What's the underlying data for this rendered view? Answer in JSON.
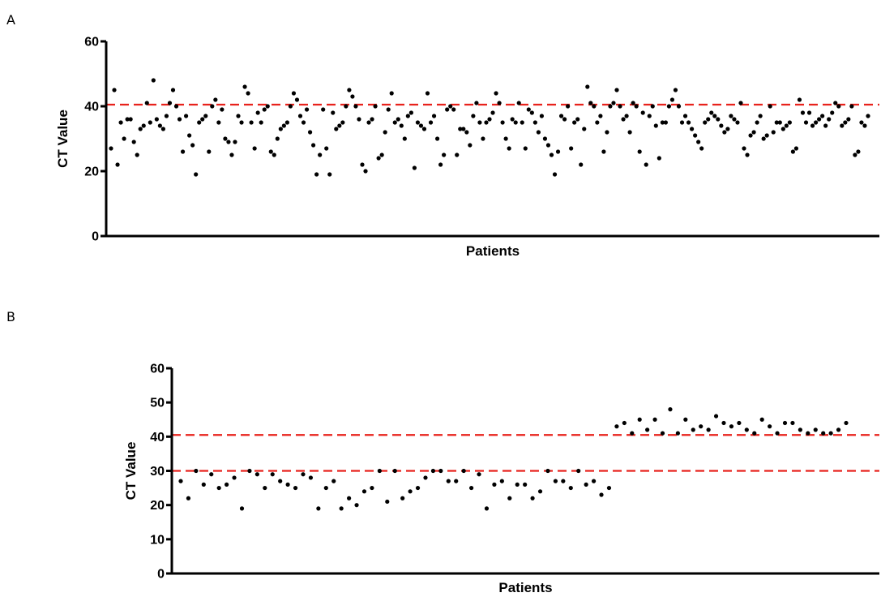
{
  "chart_data": [
    {
      "panel": "A",
      "type": "scatter",
      "xlabel": "Patients",
      "ylabel": "CT Value",
      "ylim": [
        0,
        60
      ],
      "yticks": [
        0,
        20,
        40,
        60
      ],
      "grid": false,
      "point_color": "#000000",
      "threshold_color": "#e8221c",
      "thresholds": [
        40.5
      ],
      "y": [
        27,
        45,
        22,
        35,
        30,
        36,
        36,
        29,
        25,
        33,
        34,
        41,
        35,
        48,
        36,
        34,
        33,
        37,
        41,
        45,
        40,
        36,
        26,
        37,
        31,
        28,
        19,
        35,
        36,
        37,
        26,
        40,
        42,
        35,
        39,
        30,
        29,
        25,
        29,
        37,
        35,
        46,
        44,
        35,
        27,
        38,
        35,
        39,
        40,
        26,
        25,
        30,
        33,
        34,
        35,
        40,
        44,
        42,
        37,
        35,
        39,
        32,
        28,
        19,
        25,
        39,
        27,
        19,
        38,
        33,
        34,
        35,
        40,
        45,
        43,
        40,
        36,
        22,
        20,
        35,
        36,
        40,
        24,
        25,
        32,
        39,
        44,
        35,
        36,
        34,
        30,
        37,
        38,
        21,
        35,
        34,
        33,
        44,
        35,
        37,
        30,
        22,
        25,
        39,
        40,
        39,
        25,
        33,
        33,
        32,
        28,
        37,
        41,
        35,
        30,
        35,
        36,
        38,
        44,
        41,
        35,
        30,
        27,
        36,
        35,
        41,
        35,
        27,
        39,
        38,
        35,
        32,
        37,
        30,
        28,
        25,
        19,
        26,
        37,
        36,
        40,
        27,
        35,
        36,
        22,
        33,
        46,
        41,
        40,
        35,
        37,
        26,
        32,
        40,
        41,
        45,
        40,
        36,
        37,
        32,
        41,
        40,
        26,
        38,
        22,
        37,
        40,
        34,
        24,
        35,
        35,
        40,
        42,
        45,
        40,
        35,
        37,
        35,
        33,
        31,
        29,
        27,
        35,
        36,
        38,
        37,
        36,
        34,
        32,
        33,
        37,
        36,
        35,
        41,
        27,
        25,
        31,
        32,
        35,
        37,
        30,
        31,
        40,
        32,
        35,
        35,
        33,
        34,
        35,
        26,
        27,
        42,
        38,
        35,
        38,
        34,
        35,
        36,
        37,
        34,
        36,
        38,
        41,
        40,
        34,
        35,
        36,
        40,
        25,
        26,
        35,
        34,
        37
      ]
    },
    {
      "panel": "B",
      "type": "scatter",
      "xlabel": "Patients",
      "ylabel": "CT Value",
      "ylim": [
        0,
        60
      ],
      "yticks": [
        0,
        10,
        20,
        30,
        40,
        50,
        60
      ],
      "grid": false,
      "point_color": "#000000",
      "threshold_color": "#e8221c",
      "thresholds": [
        40.5,
        30
      ],
      "y": [
        27,
        22,
        30,
        26,
        29,
        25,
        26,
        28,
        19,
        30,
        29,
        25,
        29,
        27,
        26,
        25,
        29,
        28,
        19,
        25,
        27,
        19,
        22,
        20,
        24,
        25,
        30,
        21,
        30,
        22,
        24,
        25,
        28,
        30,
        30,
        27,
        27,
        30,
        25,
        29,
        19,
        26,
        27,
        22,
        26,
        26,
        22,
        24,
        30,
        27,
        27,
        25,
        30,
        26,
        27,
        23,
        25,
        43,
        44,
        41,
        45,
        42,
        45,
        41,
        48,
        41,
        45,
        42,
        43,
        42,
        46,
        44,
        43,
        44,
        42,
        41,
        45,
        43,
        41,
        44,
        44,
        42,
        41,
        42,
        41,
        41,
        42,
        44
      ]
    }
  ]
}
